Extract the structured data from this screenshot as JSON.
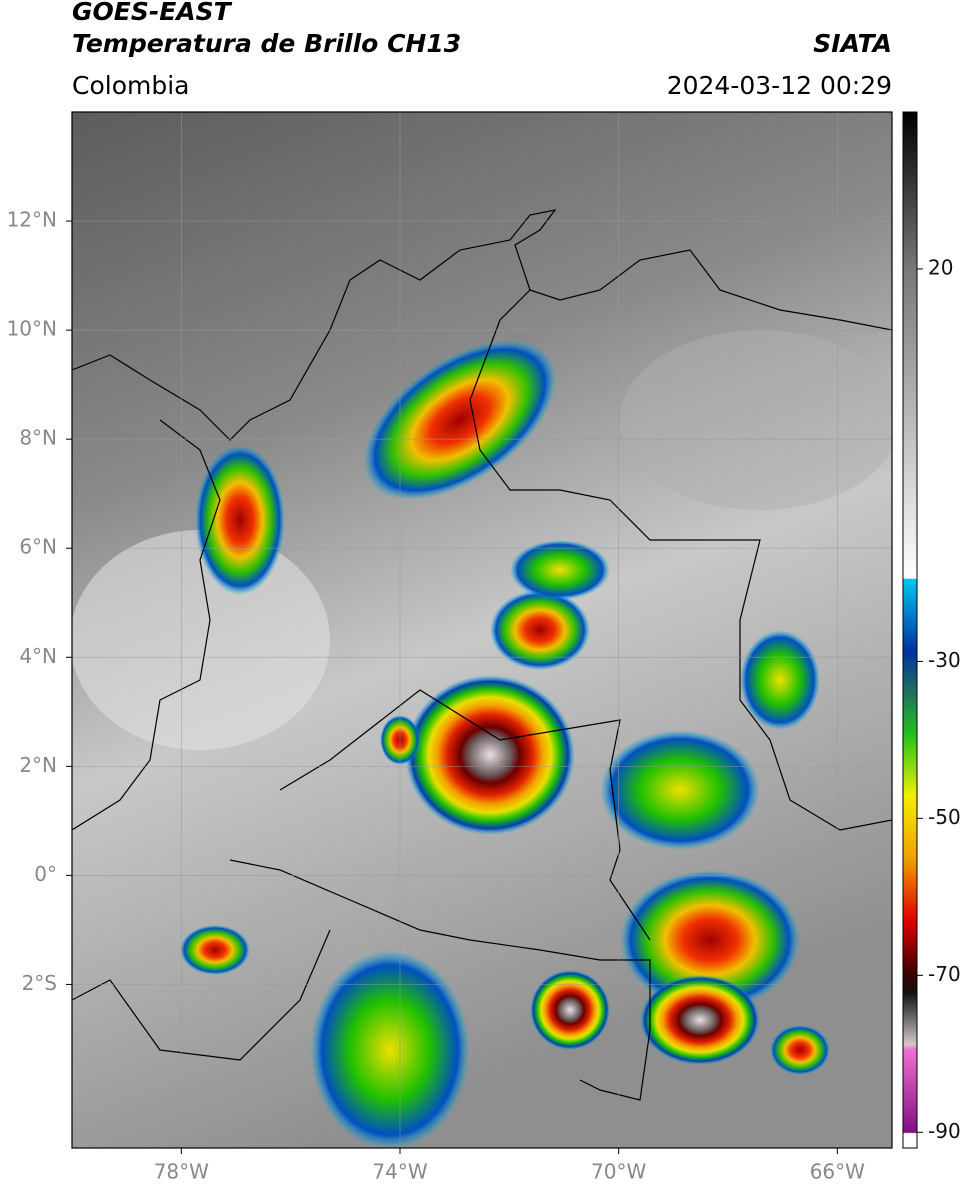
{
  "header": {
    "title": "GOES-EAST",
    "subtitle": "Temperatura de Brillo CH13",
    "source": "SIATA",
    "region": "Colombia",
    "datetime": "2024-03-12 00:29"
  },
  "map": {
    "xlim": [
      -80,
      -65
    ],
    "ylim": [
      -5,
      14
    ],
    "xticks": [
      {
        "value": -78,
        "label": "78°W"
      },
      {
        "value": -74,
        "label": "74°W"
      },
      {
        "value": -70,
        "label": "70°W"
      },
      {
        "value": -66,
        "label": "66°W"
      }
    ],
    "yticks": [
      {
        "value": 12,
        "label": "12°N"
      },
      {
        "value": 10,
        "label": "10°N"
      },
      {
        "value": 8,
        "label": "8°N"
      },
      {
        "value": 6,
        "label": "6°N"
      },
      {
        "value": 4,
        "label": "4°N"
      },
      {
        "value": 2,
        "label": "2°N"
      },
      {
        "value": 0,
        "label": "0°"
      },
      {
        "value": -2,
        "label": "2°S"
      }
    ],
    "grid": true
  },
  "colorbar": {
    "lim": [
      -92,
      40
    ],
    "ticks": [
      20,
      -30,
      -50,
      -70,
      -90
    ]
  }
}
